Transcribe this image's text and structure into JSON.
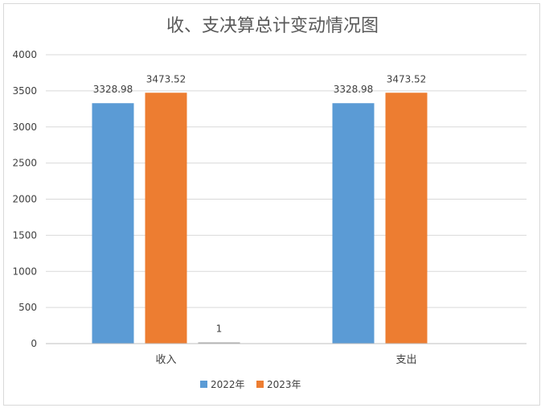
{
  "chart_data": {
    "type": "bar",
    "title": "收、支决算总计变动情况图",
    "xlabel": "",
    "ylabel": "",
    "ylim": [
      0,
      4000
    ],
    "yticks": [
      0,
      500,
      1000,
      1500,
      2000,
      2500,
      3000,
      3500,
      4000
    ],
    "grid": true,
    "legend_position": "bottom",
    "categories": [
      "收入",
      "支出"
    ],
    "series": [
      {
        "name": "2022年",
        "color": "#5b9bd5",
        "values": [
          3328.98,
          3328.98
        ],
        "labels": [
          "3328.98",
          "3328.98"
        ]
      },
      {
        "name": "2023年",
        "color": "#ed7d31",
        "values": [
          3473.52,
          3473.52
        ],
        "labels": [
          "3473.52",
          "3473.52"
        ]
      },
      {
        "name": "",
        "color": "#a5a5a5",
        "values": [
          1,
          null
        ],
        "labels": [
          "1",
          ""
        ]
      }
    ],
    "legend": [
      "2022年",
      "2023年"
    ]
  }
}
